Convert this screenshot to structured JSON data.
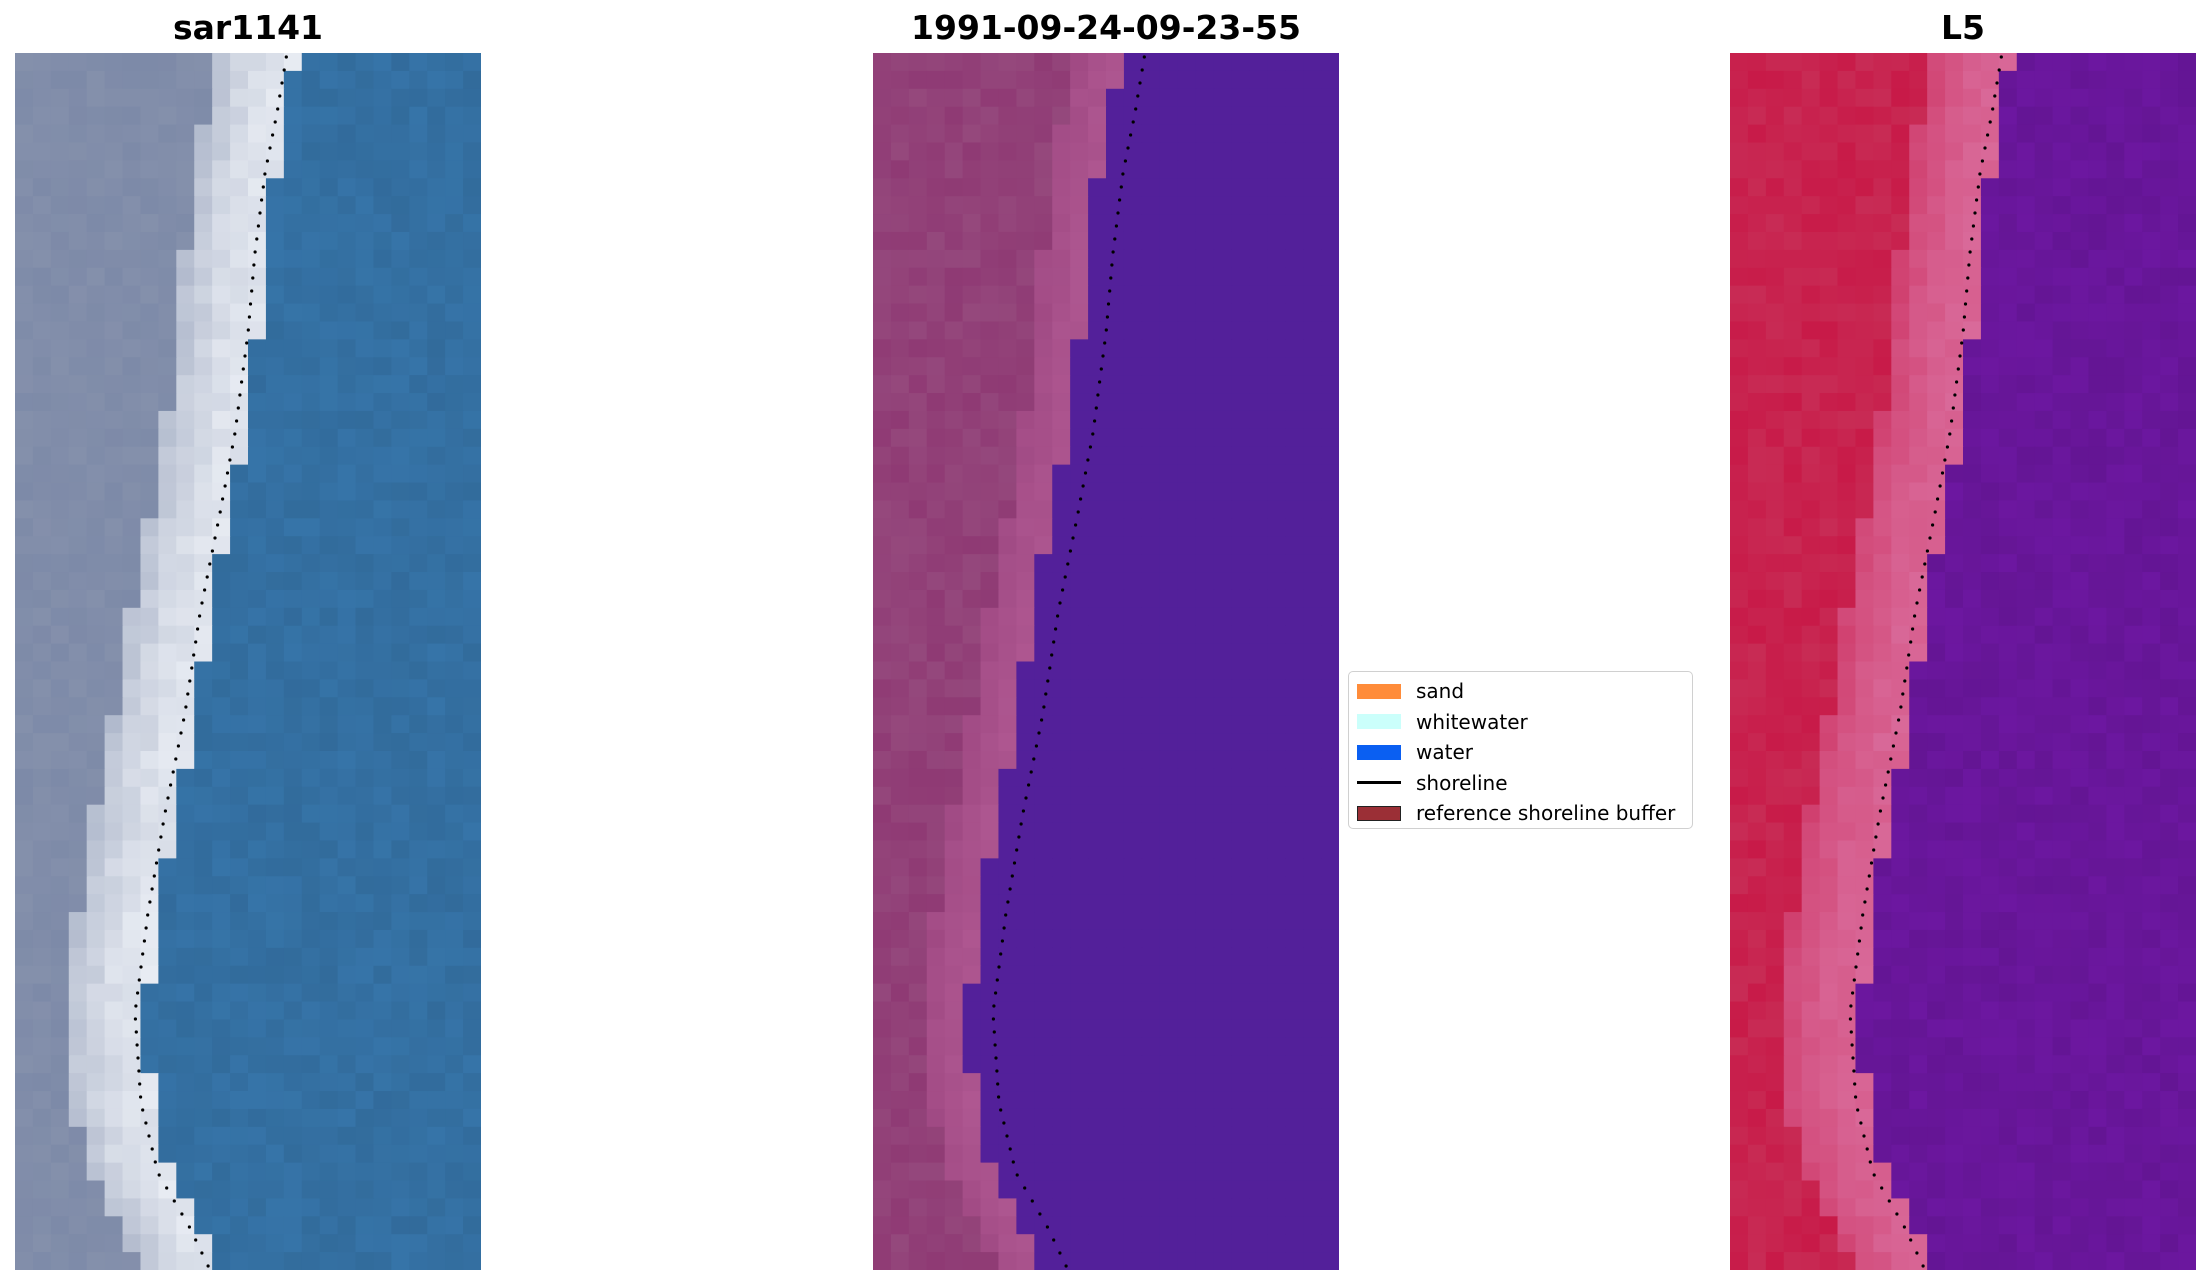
{
  "panels": [
    {
      "title": "sar1141",
      "kind": "rgb"
    },
    {
      "title": "1991-09-24-09-23-55",
      "kind": "classified"
    },
    {
      "title": "L5",
      "kind": "index"
    }
  ],
  "legend": {
    "items": [
      {
        "label": "sand",
        "color": "#ff8c3a",
        "type": "patch"
      },
      {
        "label": "whitewater",
        "color": "#cbfffb",
        "type": "patch"
      },
      {
        "label": "water",
        "color": "#0a5ff2",
        "type": "patch"
      },
      {
        "label": "shoreline",
        "color": "#000000",
        "type": "line"
      },
      {
        "label": "reference shoreline buffer",
        "color": "#9b2f36",
        "type": "patch"
      }
    ]
  },
  "colors": {
    "water_rgb": "#3674a8",
    "beach_rgb": "#e8ecf3",
    "land_rgb": "#7d8aa8",
    "classified_water": "#53209a",
    "classified_land": "#8f3a74",
    "classified_beach": "#b25a94",
    "index_land": "#c81a48",
    "index_water": "#6c17a0",
    "index_beach": "#d96a9a"
  }
}
